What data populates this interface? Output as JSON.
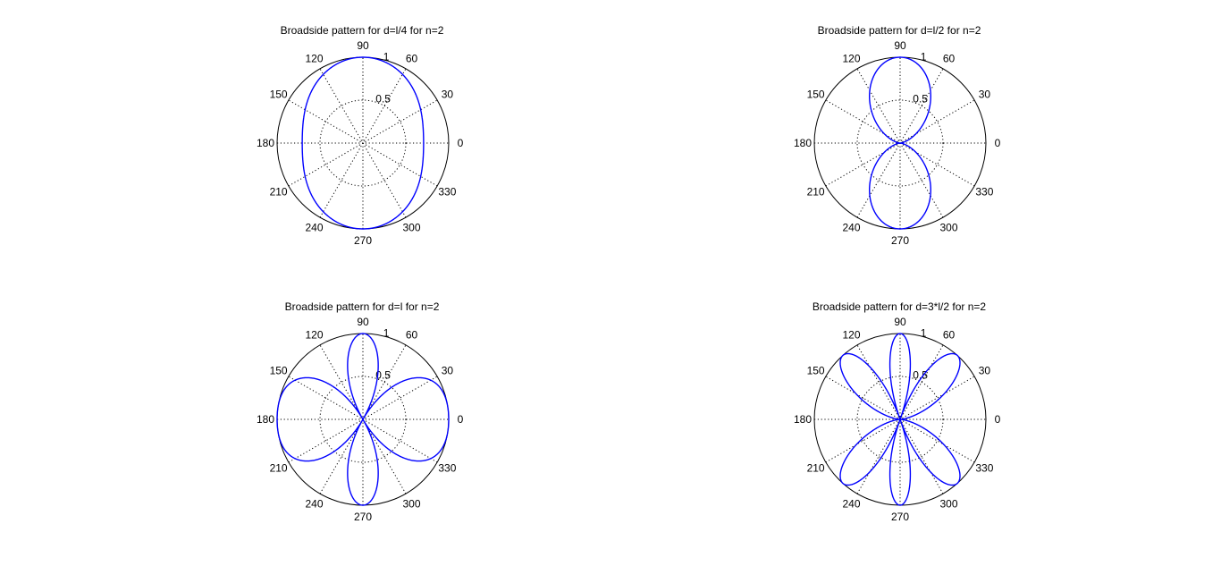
{
  "chart_data": [
    {
      "type": "polar",
      "title": "Broadside pattern for d=l/4 for n=2",
      "d_over_lambda": 0.25,
      "n": 2,
      "rlim": [
        0,
        1
      ],
      "r_ticks": [
        "0.5",
        "1"
      ],
      "theta_ticks": [
        "0",
        "30",
        "60",
        "90",
        "120",
        "150",
        "180",
        "210",
        "240",
        "270",
        "300",
        "330"
      ],
      "grid": true,
      "series_color": "#0000ff"
    },
    {
      "type": "polar",
      "title": "Broadside pattern for d=l/2 for n=2",
      "d_over_lambda": 0.5,
      "n": 2,
      "rlim": [
        0,
        1
      ],
      "r_ticks": [
        "0.5",
        "1"
      ],
      "theta_ticks": [
        "0",
        "30",
        "60",
        "90",
        "120",
        "150",
        "180",
        "210",
        "240",
        "270",
        "300",
        "330"
      ],
      "grid": true,
      "series_color": "#0000ff"
    },
    {
      "type": "polar",
      "title": "Broadside pattern for d=l for n=2",
      "d_over_lambda": 1,
      "n": 2,
      "rlim": [
        0,
        1
      ],
      "r_ticks": [
        "0.5",
        "1"
      ],
      "theta_ticks": [
        "0",
        "30",
        "60",
        "90",
        "120",
        "150",
        "180",
        "210",
        "240",
        "270",
        "300",
        "330"
      ],
      "grid": true,
      "series_color": "#0000ff"
    },
    {
      "type": "polar",
      "title": "Broadside pattern for d=3*l/2 for n=2",
      "d_over_lambda": 1.5,
      "n": 2,
      "rlim": [
        0,
        1
      ],
      "r_ticks": [
        "0.5",
        "1"
      ],
      "theta_ticks": [
        "0",
        "30",
        "60",
        "90",
        "120",
        "150",
        "180",
        "210",
        "240",
        "270",
        "300",
        "330"
      ],
      "grid": true,
      "series_color": "#0000ff"
    }
  ]
}
